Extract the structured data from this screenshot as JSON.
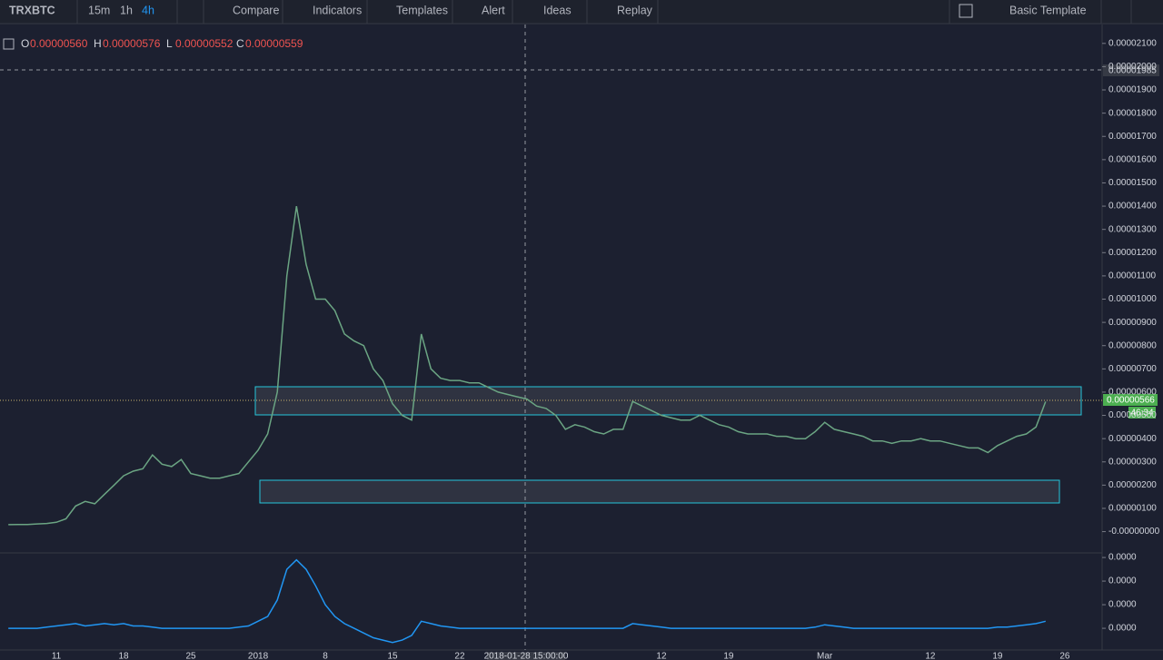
{
  "toolbar": {
    "symbol": "TRXBTC",
    "intervals": [
      "15m",
      "1h",
      "4h"
    ],
    "items": [
      "Compare",
      "Indicators",
      "Templates",
      "Alert",
      "Ideas",
      "Replay"
    ],
    "template": "Basic Template"
  },
  "legend": [
    {
      "key": "O",
      "value": "0.00000560"
    },
    {
      "key": "H",
      "value": "0.00000576"
    },
    {
      "key": "L",
      "value": "0.00000552"
    },
    {
      "key": "C",
      "value": "0.00000559"
    }
  ],
  "crosshair": {
    "price": "0.00001985",
    "time": "2018-01-28 15:00:00"
  },
  "last_price": {
    "price": "0.00000566",
    "countdown": "46:34"
  },
  "chart_data": [
    {
      "type": "line",
      "color": "#6ba583",
      "categories": [
        null,
        null,
        null,
        null,
        null,
        "11",
        null,
        null,
        null,
        null,
        null,
        null,
        "18",
        null,
        null,
        null,
        null,
        null,
        null,
        "25",
        null,
        null,
        null,
        null,
        null,
        null,
        "2018",
        null,
        null,
        null,
        null,
        null,
        null,
        "8",
        null,
        null,
        null,
        null,
        null,
        null,
        "15",
        null,
        null,
        null,
        null,
        null,
        null,
        "22",
        null,
        null,
        null,
        null,
        null,
        null,
        null,
        null,
        null,
        null,
        null,
        null,
        null,
        null,
        null,
        null,
        null,
        null,
        null,
        null,
        "12",
        null,
        null,
        null,
        null,
        null,
        null,
        "19",
        null,
        null,
        null,
        null,
        null,
        null,
        null,
        null,
        null,
        "Mar",
        null,
        null,
        null,
        null,
        null,
        null,
        null,
        null,
        null,
        null,
        "12",
        null,
        null,
        null,
        null,
        null,
        null,
        "19",
        null,
        null,
        null,
        null,
        null,
        null,
        "26"
      ],
      "values": [
        3e-07,
        3.1e-07,
        3.1e-07,
        3.3e-07,
        3.5e-07,
        4e-07,
        5.5e-07,
        1.1e-06,
        1.3e-06,
        1.2e-06,
        1.6e-06,
        2e-06,
        2.4e-06,
        2.6e-06,
        2.7e-06,
        3.3e-06,
        2.9e-06,
        2.8e-06,
        3.1e-06,
        2.5e-06,
        2.4e-06,
        2.3e-06,
        2.3e-06,
        2.4e-06,
        2.5e-06,
        3e-06,
        3.5e-06,
        4.2e-06,
        6e-06,
        1.1e-05,
        1.4e-05,
        1.15e-05,
        1e-05,
        1e-05,
        9.5e-06,
        8.5e-06,
        8.2e-06,
        8e-06,
        7e-06,
        6.5e-06,
        5.5e-06,
        5e-06,
        4.8e-06,
        8.5e-06,
        7e-06,
        6.6e-06,
        6.5e-06,
        6.5e-06,
        6.4e-06,
        6.4e-06,
        6.2e-06,
        6e-06,
        5.9e-06,
        5.8e-06,
        5.7e-06,
        5.4e-06,
        5.3e-06,
        5e-06,
        4.4e-06,
        4.6e-06,
        4.5e-06,
        4.3e-06,
        4.2e-06,
        4.4e-06,
        4.4e-06,
        5.6e-06,
        5.4e-06,
        5.2e-06,
        5e-06,
        4.9e-06,
        4.8e-06,
        4.8e-06,
        5e-06,
        4.8e-06,
        4.6e-06,
        4.5e-06,
        4.3e-06,
        4.2e-06,
        4.2e-06,
        4.2e-06,
        4.1e-06,
        4.1e-06,
        4e-06,
        4e-06,
        4.3e-06,
        4.7e-06,
        4.4e-06,
        4.3e-06,
        4.2e-06,
        4.1e-06,
        3.9e-06,
        3.9e-06,
        3.8e-06,
        3.9e-06,
        3.9e-06,
        4e-06,
        3.9e-06,
        3.9e-06,
        3.8e-06,
        3.7e-06,
        3.6e-06,
        3.6e-06,
        3.4e-06,
        3.7e-06,
        3.9e-06,
        4.1e-06,
        4.2e-06,
        4.5e-06,
        5.59e-06,
        null,
        null
      ],
      "ylim": [
        -8.75e-07,
        2.15e-05
      ],
      "yticks": [
        {
          "value": 2.1e-05,
          "label": "0.00002100"
        },
        {
          "value": 2e-05,
          "label": "0.00002000"
        },
        {
          "value": 1.9e-05,
          "label": "0.00001900"
        },
        {
          "value": 1.8e-05,
          "label": "0.00001800"
        },
        {
          "value": 1.7e-05,
          "label": "0.00001700"
        },
        {
          "value": 1.6e-05,
          "label": "0.00001600"
        },
        {
          "value": 1.5e-05,
          "label": "0.00001500"
        },
        {
          "value": 1.4e-05,
          "label": "0.00001400"
        },
        {
          "value": 1.3e-05,
          "label": "0.00001300"
        },
        {
          "value": 1.2e-05,
          "label": "0.00001200"
        },
        {
          "value": 1.1e-05,
          "label": "0.00001100"
        },
        {
          "value": 1e-05,
          "label": "0.00001000"
        },
        {
          "value": 9e-06,
          "label": "0.00000900"
        },
        {
          "value": 8e-06,
          "label": "0.00000800"
        },
        {
          "value": 7e-06,
          "label": "0.00000700"
        },
        {
          "value": 6e-06,
          "label": "0.00000600"
        },
        {
          "value": 5e-06,
          "label": "0.00000500"
        },
        {
          "value": 4e-06,
          "label": "0.00000400"
        },
        {
          "value": 3e-06,
          "label": "0.00000300"
        },
        {
          "value": 2e-06,
          "label": "0.00000200"
        },
        {
          "value": 1e-06,
          "label": "0.00000100"
        },
        {
          "value": 0,
          "label": "-0.00000000"
        }
      ]
    },
    {
      "type": "line",
      "color": "#2196f3",
      "values": [
        0,
        0,
        0,
        0,
        5e-09,
        1e-08,
        1.5e-08,
        2e-08,
        1e-08,
        1.5e-08,
        2e-08,
        1.5e-08,
        2e-08,
        1e-08,
        1e-08,
        5e-09,
        0,
        0,
        0,
        0,
        0,
        0,
        0,
        0,
        5e-09,
        1e-08,
        3e-08,
        5e-08,
        1.2e-07,
        2.5e-07,
        2.9e-07,
        2.5e-07,
        1.8e-07,
        1e-07,
        5e-08,
        2e-08,
        0,
        -2e-08,
        -4e-08,
        -5e-08,
        -6e-08,
        -5e-08,
        -3e-08,
        3e-08,
        2e-08,
        1e-08,
        5e-09,
        0,
        0,
        0,
        0,
        0,
        0,
        0,
        0,
        0,
        0,
        0,
        0,
        0,
        0,
        0,
        0,
        0,
        0,
        2e-08,
        1.5e-08,
        1e-08,
        5e-09,
        0,
        0,
        0,
        0,
        0,
        0,
        0,
        0,
        0,
        0,
        0,
        0,
        0,
        0,
        0,
        5e-09,
        1.5e-08,
        1e-08,
        5e-09,
        0,
        0,
        0,
        0,
        0,
        0,
        0,
        0,
        0,
        0,
        0,
        0,
        0,
        0,
        0,
        5e-09,
        5e-09,
        1e-08,
        1.5e-08,
        2e-08,
        3e-08,
        null,
        null
      ],
      "ylim": [
        -9.2e-08,
        3.08e-07
      ],
      "yticks": [
        {
          "value": 3e-07,
          "label": "0.0000"
        },
        {
          "value": 2e-07,
          "label": "0.0000"
        },
        {
          "value": 1e-07,
          "label": "0.0000"
        },
        {
          "value": 0,
          "label": "0.0000"
        }
      ]
    }
  ]
}
